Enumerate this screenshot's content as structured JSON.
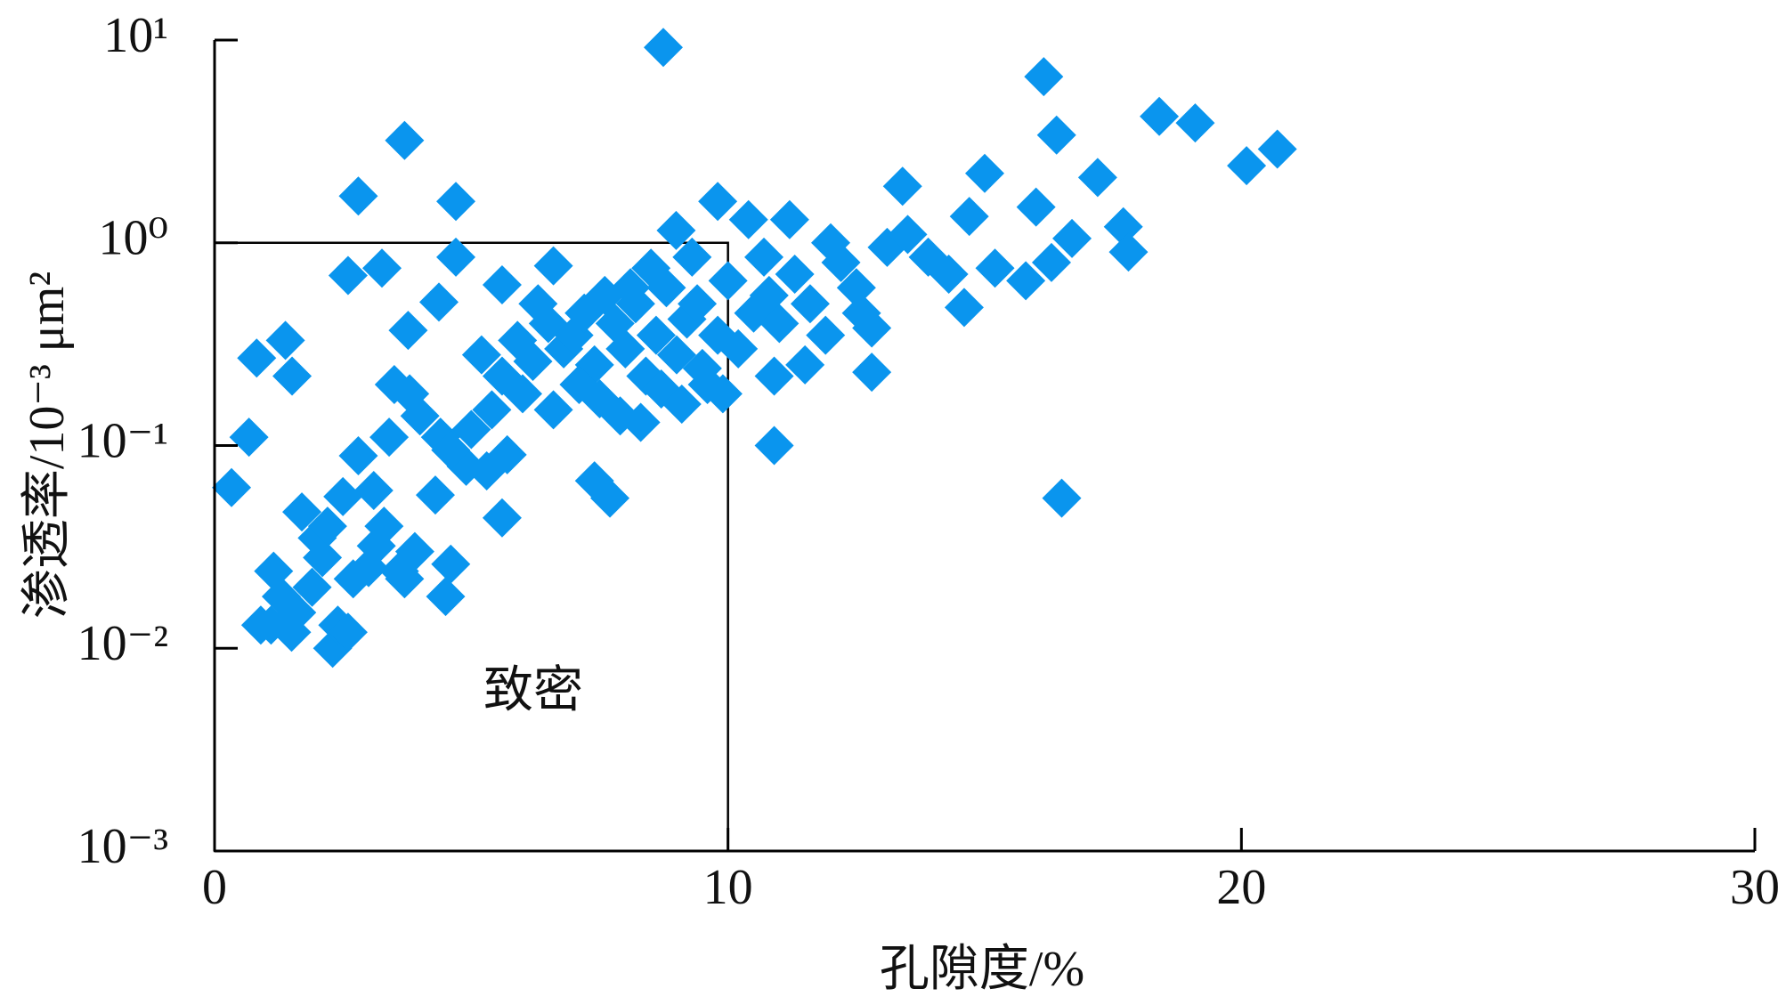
{
  "chart_data": {
    "type": "scatter",
    "xlabel": "孔隙度/%",
    "ylabel": "渗透率/10⁻³ μm²",
    "annotation": "致密",
    "region": {
      "xlim": [
        0,
        10
      ],
      "ylim": [
        0.001,
        1
      ]
    },
    "log_y": true,
    "xlim": [
      0,
      30
    ],
    "ylim": [
      0.001,
      10
    ],
    "xticks": [
      0,
      10,
      20,
      30
    ],
    "yticks": [
      {
        "value": 0.001,
        "label": "10⁻³"
      },
      {
        "value": 0.01,
        "label": "10⁻²"
      },
      {
        "value": 0.1,
        "label": "10⁻¹"
      },
      {
        "value": 1,
        "label": "10⁰"
      },
      {
        "value": 10,
        "label": "10¹"
      }
    ],
    "color": "#0a95ee",
    "x": [
      8.74,
      16.15,
      3.7,
      16.4,
      18.4,
      19.1,
      20.7,
      20.1,
      2.8,
      4.7,
      13.4,
      15.0,
      17.2,
      16.0,
      14.7,
      17.7,
      16.7,
      17.8,
      9.8,
      8.99,
      4.7,
      2.6,
      3.26,
      5.6,
      6.6,
      4.37,
      3.77,
      1.38,
      0.82,
      1.51,
      0.67,
      0.33,
      16.5,
      10.9,
      14.6,
      12.8,
      5.6,
      7.7,
      7.4,
      4.5,
      4.6,
      2.3,
      0.9,
      1.15,
      1.7,
      2.5,
      2.8,
      3.4,
      4.3,
      4.9,
      3.15,
      3.6,
      5.2,
      5.6,
      5.9,
      6.2,
      6.5,
      6.8,
      7.0,
      7.2,
      7.4,
      7.6,
      7.8,
      8.0,
      8.2,
      8.4,
      8.6,
      8.8,
      9.0,
      9.2,
      9.4,
      9.6,
      9.8,
      10.0,
      10.2,
      10.5,
      10.8,
      11.0,
      11.3,
      11.6,
      11.9,
      12.2,
      12.5,
      12.8,
      13.1,
      13.5,
      13.9,
      14.3,
      15.2,
      15.8,
      16.3,
      6.0,
      6.6,
      7.1,
      7.5,
      7.9,
      8.3,
      8.7,
      9.1,
      9.5,
      5.0,
      5.4,
      4.4,
      4.0,
      3.8,
      3.5,
      8.1,
      8.5,
      9.3,
      10.4,
      11.2,
      12.0,
      10.7,
      12.6,
      11.5,
      10.9,
      9.9,
      6.3,
      5.7,
      5.3,
      4.6,
      1.3,
      1.6,
      1.9,
      2.1,
      2.4,
      2.7,
      3.0,
      3.3,
      3.7,
      3.9,
      2.0,
      1.1,
      1.5,
      2.6,
      3.1,
      2.2
    ],
    "values": [
      9.2,
      6.6,
      3.2,
      3.4,
      4.2,
      3.9,
      2.9,
      2.4,
      1.7,
      1.6,
      1.9,
      2.2,
      2.1,
      1.5,
      1.35,
      1.2,
      1.05,
      0.9,
      1.6,
      1.15,
      0.85,
      0.69,
      0.75,
      0.62,
      0.77,
      0.51,
      0.37,
      0.33,
      0.27,
      0.22,
      0.11,
      0.062,
      0.055,
      0.1,
      0.48,
      0.23,
      0.044,
      0.055,
      0.067,
      0.018,
      0.026,
      0.01,
      0.013,
      0.024,
      0.047,
      0.056,
      0.089,
      0.11,
      0.057,
      0.079,
      0.032,
      0.024,
      0.28,
      0.22,
      0.33,
      0.26,
      0.4,
      0.3,
      0.35,
      0.45,
      0.25,
      0.55,
      0.4,
      0.3,
      0.5,
      0.22,
      0.35,
      0.6,
      0.28,
      0.42,
      0.5,
      0.2,
      0.35,
      0.65,
      0.3,
      0.45,
      0.55,
      0.4,
      0.7,
      0.5,
      0.35,
      0.8,
      0.6,
      0.38,
      0.95,
      1.1,
      0.85,
      0.7,
      0.75,
      0.65,
      0.8,
      0.18,
      0.15,
      0.2,
      0.17,
      0.14,
      0.13,
      0.19,
      0.16,
      0.24,
      0.12,
      0.15,
      0.11,
      0.14,
      0.18,
      0.2,
      0.6,
      0.75,
      0.85,
      1.3,
      1.3,
      1.0,
      0.85,
      0.45,
      0.25,
      0.22,
      0.18,
      0.5,
      0.09,
      0.075,
      0.095,
      0.018,
      0.015,
      0.02,
      0.028,
      0.013,
      0.022,
      0.025,
      0.04,
      0.022,
      0.03,
      0.035,
      0.013,
      0.012,
      0.012,
      0.06,
      0.04
    ]
  }
}
